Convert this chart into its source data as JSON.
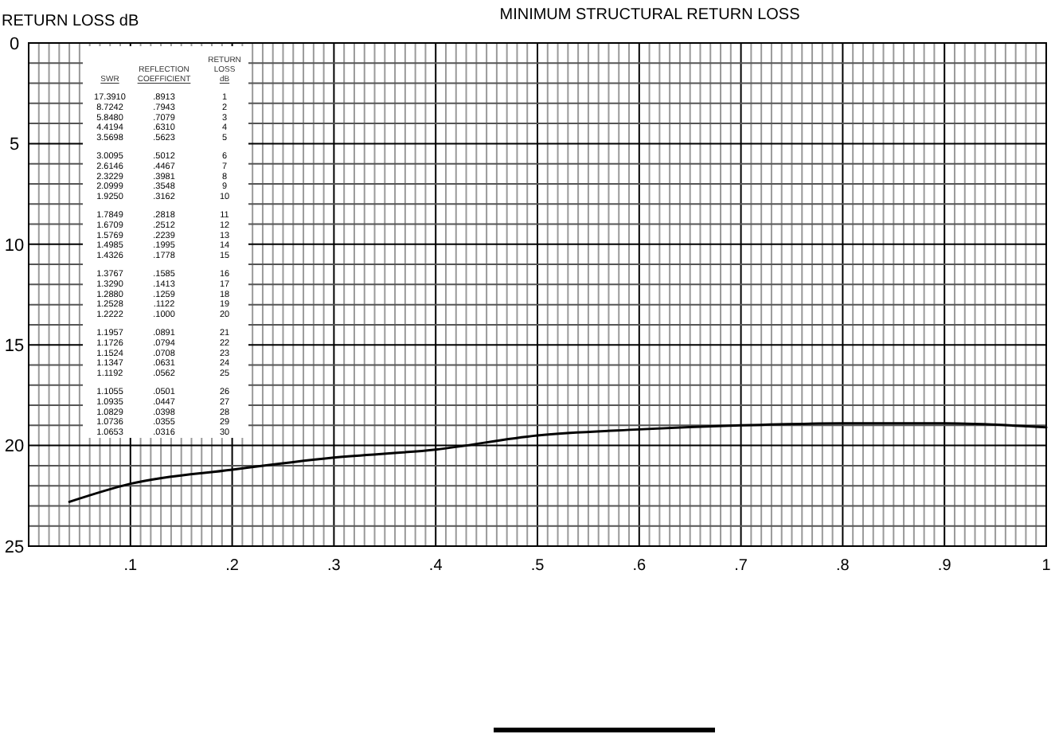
{
  "chart_data": {
    "type": "line",
    "title": "MINIMUM STRUCTURAL RETURN LOSS",
    "ylabel": "RETURN LOSS dB",
    "x": [
      0.04,
      0.1,
      0.2,
      0.3,
      0.4,
      0.5,
      0.6,
      0.7,
      0.8,
      0.9,
      1.0
    ],
    "series": [
      {
        "color": "#000000",
        "values": [
          22.8,
          21.9,
          21.2,
          20.6,
          20.2,
          19.5,
          19.2,
          19.0,
          18.9,
          18.9,
          19.1
        ]
      }
    ],
    "xlim": [
      0,
      1
    ],
    "xticks": [
      {
        "value": 0.01,
        "label": null
      },
      {
        "value": 0.02,
        "label": null
      },
      {
        "value": 0.03,
        "label": null
      },
      {
        "value": 0.04,
        "label": null
      },
      {
        "value": 0.05,
        "label": null
      },
      {
        "value": 0.06,
        "label": null
      },
      {
        "value": 0.07,
        "label": null
      },
      {
        "value": 0.08,
        "label": null
      },
      {
        "value": 0.09,
        "label": null
      },
      {
        "value": 0.1,
        "label": ".1"
      },
      {
        "value": 0.11,
        "label": null
      },
      {
        "value": 0.12,
        "label": null
      },
      {
        "value": 0.13,
        "label": null
      },
      {
        "value": 0.14,
        "label": null
      },
      {
        "value": 0.15,
        "label": null
      },
      {
        "value": 0.16,
        "label": null
      },
      {
        "value": 0.17,
        "label": null
      },
      {
        "value": 0.18,
        "label": null
      },
      {
        "value": 0.19,
        "label": null
      },
      {
        "value": 0.2,
        "label": ".2"
      },
      {
        "value": 0.21,
        "label": null
      },
      {
        "value": 0.22,
        "label": null
      },
      {
        "value": 0.23,
        "label": null
      },
      {
        "value": 0.24,
        "label": null
      },
      {
        "value": 0.25,
        "label": null
      },
      {
        "value": 0.26,
        "label": null
      },
      {
        "value": 0.27,
        "label": null
      },
      {
        "value": 0.28,
        "label": null
      },
      {
        "value": 0.29,
        "label": null
      },
      {
        "value": 0.3,
        "label": ".3"
      },
      {
        "value": 0.31,
        "label": null
      },
      {
        "value": 0.32,
        "label": null
      },
      {
        "value": 0.33,
        "label": null
      },
      {
        "value": 0.34,
        "label": null
      },
      {
        "value": 0.35,
        "label": null
      },
      {
        "value": 0.36,
        "label": null
      },
      {
        "value": 0.37,
        "label": null
      },
      {
        "value": 0.38,
        "label": null
      },
      {
        "value": 0.39,
        "label": null
      },
      {
        "value": 0.4,
        "label": ".4"
      },
      {
        "value": 0.41,
        "label": null
      },
      {
        "value": 0.42,
        "label": null
      },
      {
        "value": 0.43,
        "label": null
      },
      {
        "value": 0.44,
        "label": null
      },
      {
        "value": 0.45,
        "label": null
      },
      {
        "value": 0.46,
        "label": null
      },
      {
        "value": 0.47,
        "label": null
      },
      {
        "value": 0.48,
        "label": null
      },
      {
        "value": 0.49,
        "label": null
      },
      {
        "value": 0.5,
        "label": ".5"
      },
      {
        "value": 0.51,
        "label": null
      },
      {
        "value": 0.52,
        "label": null
      },
      {
        "value": 0.53,
        "label": null
      },
      {
        "value": 0.54,
        "label": null
      },
      {
        "value": 0.55,
        "label": null
      },
      {
        "value": 0.56,
        "label": null
      },
      {
        "value": 0.57,
        "label": null
      },
      {
        "value": 0.58,
        "label": null
      },
      {
        "value": 0.59,
        "label": null
      },
      {
        "value": 0.6,
        "label": ".6"
      },
      {
        "value": 0.61,
        "label": null
      },
      {
        "value": 0.62,
        "label": null
      },
      {
        "value": 0.63,
        "label": null
      },
      {
        "value": 0.64,
        "label": null
      },
      {
        "value": 0.65,
        "label": null
      },
      {
        "value": 0.66,
        "label": null
      },
      {
        "value": 0.67,
        "label": null
      },
      {
        "value": 0.68,
        "label": null
      },
      {
        "value": 0.69,
        "label": null
      },
      {
        "value": 0.7,
        "label": ".7"
      },
      {
        "value": 0.71,
        "label": null
      },
      {
        "value": 0.72,
        "label": null
      },
      {
        "value": 0.73,
        "label": null
      },
      {
        "value": 0.74,
        "label": null
      },
      {
        "value": 0.75,
        "label": null
      },
      {
        "value": 0.76,
        "label": null
      },
      {
        "value": 0.77,
        "label": null
      },
      {
        "value": 0.78,
        "label": null
      },
      {
        "value": 0.79,
        "label": null
      },
      {
        "value": 0.8,
        "label": ".8"
      },
      {
        "value": 0.81,
        "label": null
      },
      {
        "value": 0.82,
        "label": null
      },
      {
        "value": 0.83,
        "label": null
      },
      {
        "value": 0.84,
        "label": null
      },
      {
        "value": 0.85,
        "label": null
      },
      {
        "value": 0.86,
        "label": null
      },
      {
        "value": 0.87,
        "label": null
      },
      {
        "value": 0.88,
        "label": null
      },
      {
        "value": 0.89,
        "label": null
      },
      {
        "value": 0.9,
        "label": ".9"
      },
      {
        "value": 0.91,
        "label": null
      },
      {
        "value": 0.92,
        "label": null
      },
      {
        "value": 0.93,
        "label": null
      },
      {
        "value": 0.94,
        "label": null
      },
      {
        "value": 0.95,
        "label": null
      },
      {
        "value": 0.96,
        "label": null
      },
      {
        "value": 0.97,
        "label": null
      },
      {
        "value": 0.98,
        "label": null
      },
      {
        "value": 0.99,
        "label": null
      },
      1
    ],
    "ylim": [
      25,
      0
    ],
    "yticks": [
      0,
      {
        "value": 1,
        "label": null
      },
      {
        "value": 2,
        "label": null
      },
      {
        "value": 3,
        "label": null
      },
      {
        "value": 4,
        "label": null
      },
      5,
      {
        "value": 6,
        "label": null
      },
      {
        "value": 7,
        "label": null
      },
      {
        "value": 8,
        "label": null
      },
      {
        "value": 9,
        "label": null
      },
      10,
      {
        "value": 11,
        "label": null
      },
      {
        "value": 12,
        "label": null
      },
      {
        "value": 13,
        "label": null
      },
      {
        "value": 14,
        "label": null
      },
      15,
      {
        "value": 16,
        "label": null
      },
      {
        "value": 17,
        "label": null
      },
      {
        "value": 18,
        "label": null
      },
      {
        "value": 19,
        "label": null
      },
      20,
      {
        "value": 21,
        "label": null
      },
      {
        "value": 22,
        "label": null
      },
      {
        "value": 23,
        "label": null
      },
      {
        "value": 24,
        "label": null
      },
      25
    ],
    "grid": true,
    "annotations": [
      "SWR",
      "REFLECTION COEFFICIENT",
      "RETURN LOSS dB",
      "17.3910",
      ".8913",
      "1",
      "8.7242",
      ".7943",
      "2",
      "5.8480",
      ".7079",
      "3",
      "4.4194",
      ".6310",
      "4",
      "3.5698",
      ".5623",
      "5",
      "3.0095",
      ".5012",
      "6",
      "2.6146",
      ".4467",
      "7",
      "2.3229",
      ".3981",
      "8",
      "2.0999",
      ".3548",
      "9",
      "1.9250",
      ".3162",
      "10",
      "1.7849",
      ".2818",
      "11",
      "1.6709",
      ".2512",
      "12",
      "1.5769",
      ".2239",
      "13",
      "1.4985",
      ".1995",
      "14",
      "1.4326",
      ".1778",
      "15",
      "1.3767",
      ".1585",
      "16",
      "1.3290",
      ".1413",
      "17",
      "1.2880",
      ".1259",
      "18",
      "1.2528",
      ".1122",
      "19",
      "1.2222",
      ".1000",
      "20",
      "1.1957",
      ".0891",
      "21",
      "1.1726",
      ".0794",
      "22",
      "1.1524",
      ".0708",
      "23",
      "1.1347",
      ".0631",
      "24",
      "1.1192",
      ".0562",
      "25",
      "1.1055",
      ".0501",
      "26",
      "1.0935",
      ".0447",
      "27",
      "1.0829",
      ".0398",
      "28",
      "1.0736",
      ".0355",
      "29",
      "1.0653",
      ".0316",
      "30"
    ]
  }
}
